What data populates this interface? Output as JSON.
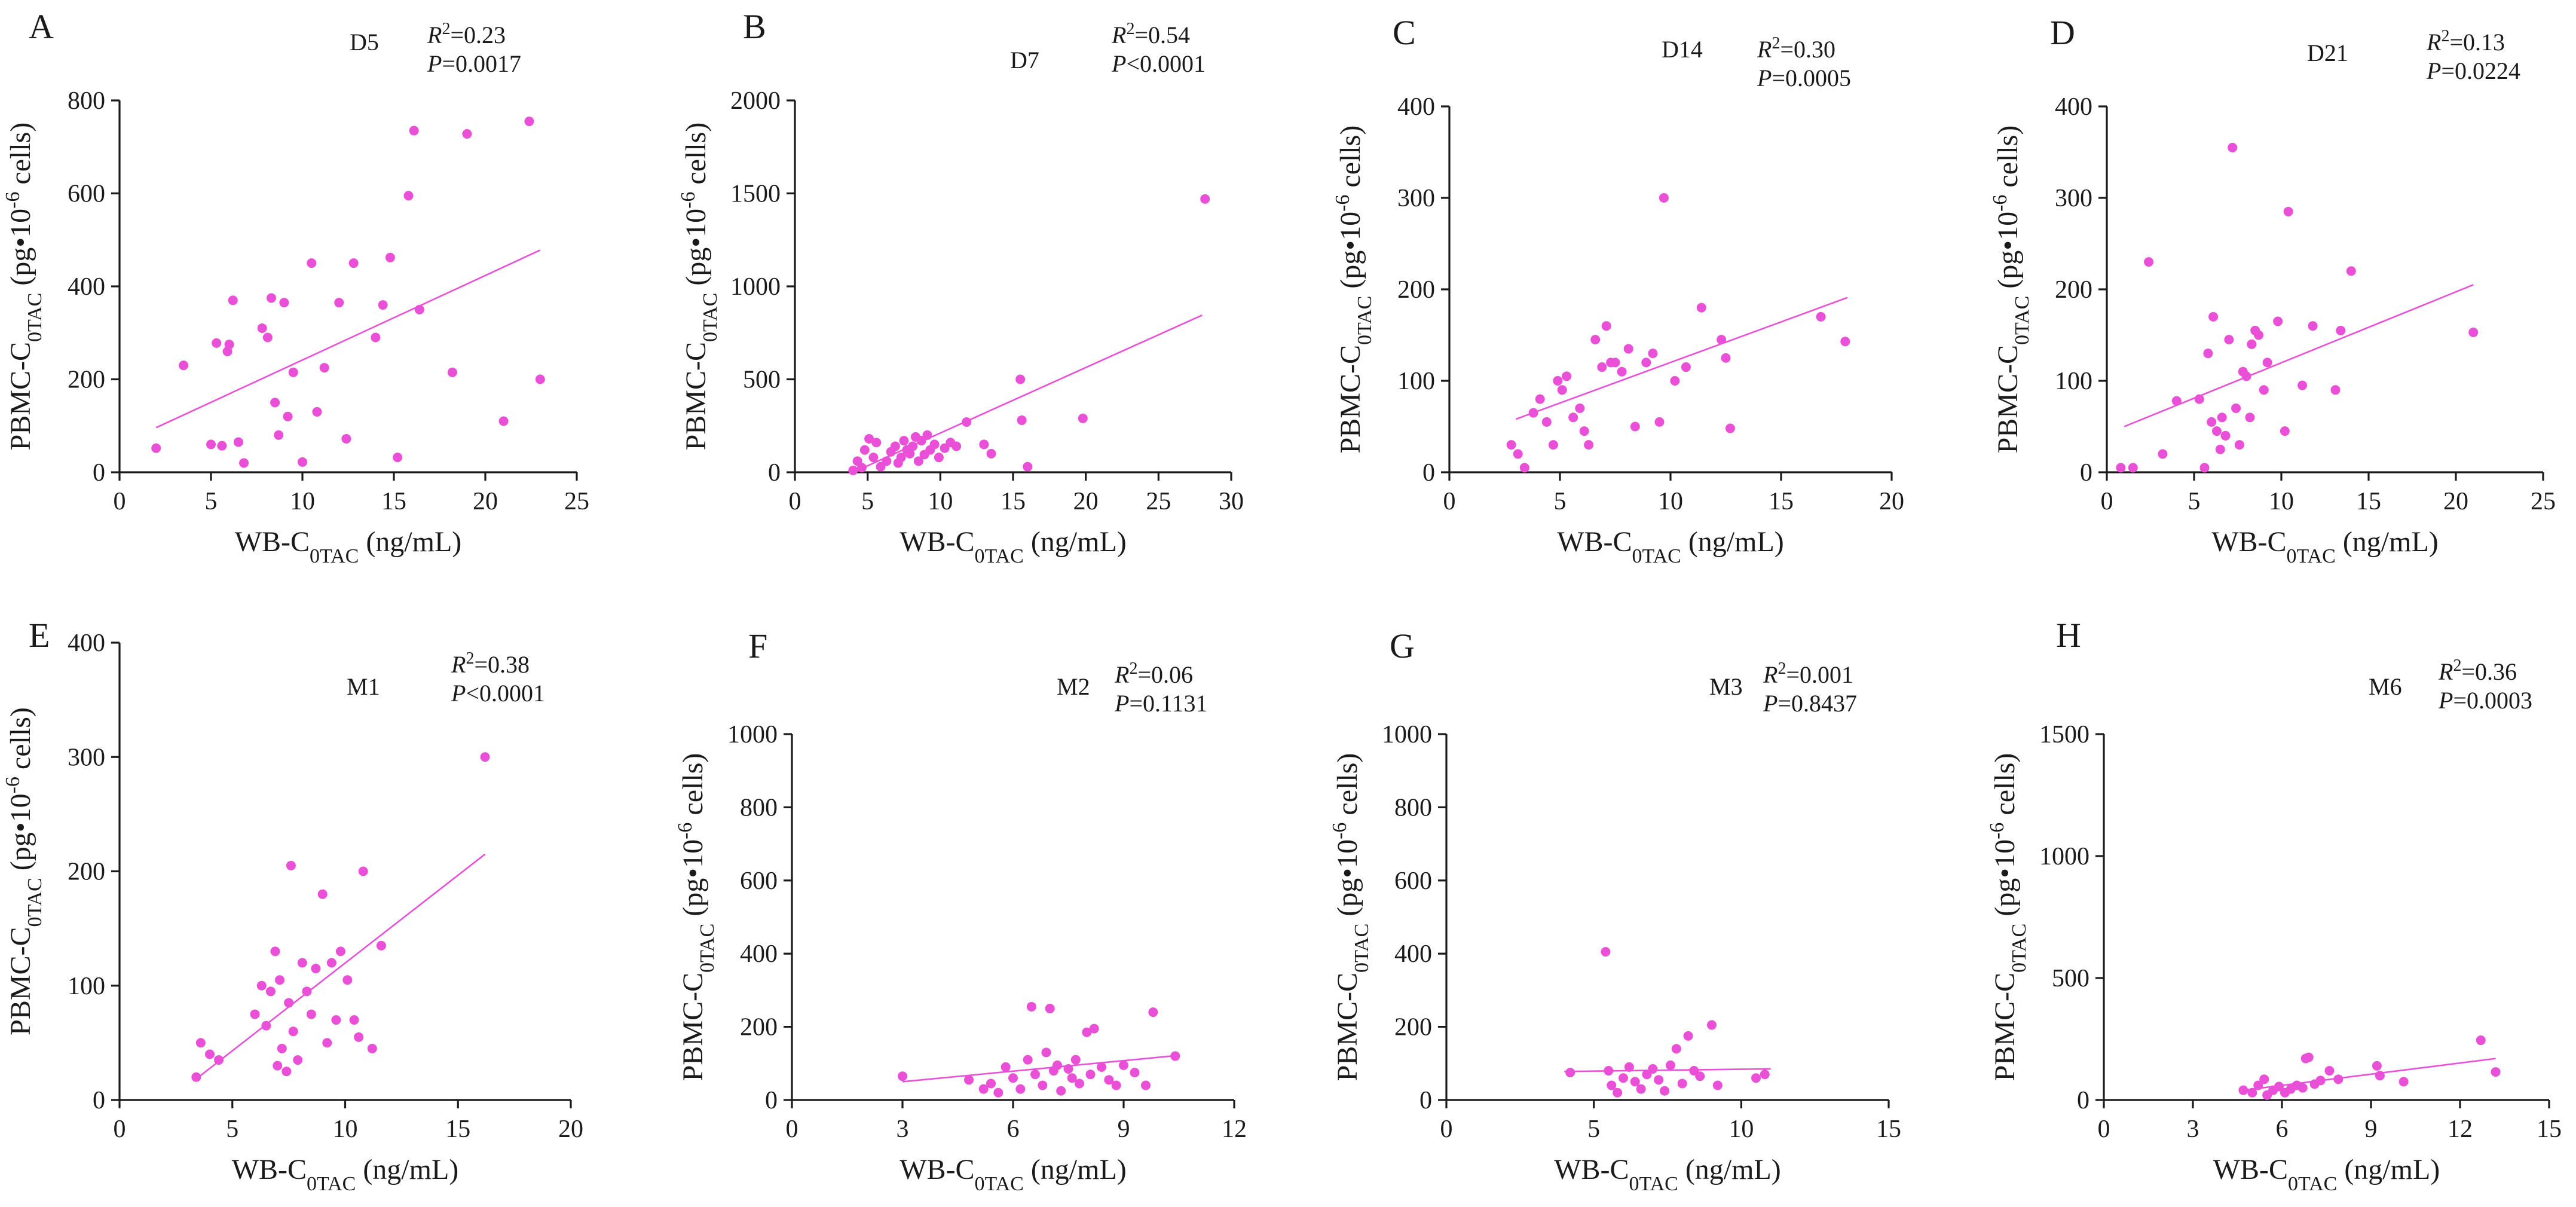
{
  "figure": {
    "point_color": "#e94fd7",
    "line_color": "#e94fd7",
    "x_label": {
      "pre": "WB-C",
      "sub": "0TAC",
      "post": " (ng/mL)"
    },
    "y_label": {
      "pre": "PBMC-C",
      "sub": "0TAC",
      "mid": " (pg•10",
      "sup": "-6",
      "post": " cells)"
    }
  },
  "chart_data": [
    {
      "panel": "A",
      "type": "scatter",
      "group": "D5",
      "r2": "0.23",
      "p_prefix": "=",
      "p": "0.0017",
      "xlim": [
        0,
        25
      ],
      "ylim": [
        0,
        800
      ],
      "xticks": [
        0,
        5,
        10,
        15,
        20,
        25
      ],
      "yticks": [
        0,
        200,
        400,
        600,
        800
      ],
      "fit": [
        [
          2,
          96
        ],
        [
          23,
          478
        ]
      ],
      "points": [
        [
          2,
          52
        ],
        [
          3.5,
          230
        ],
        [
          5,
          60
        ],
        [
          5.3,
          278
        ],
        [
          5.6,
          57
        ],
        [
          5.9,
          260
        ],
        [
          6,
          275
        ],
        [
          6.2,
          370
        ],
        [
          6.5,
          65
        ],
        [
          6.8,
          20
        ],
        [
          7.8,
          310
        ],
        [
          8.1,
          290
        ],
        [
          8.3,
          375
        ],
        [
          8.5,
          150
        ],
        [
          8.7,
          80
        ],
        [
          9,
          365
        ],
        [
          9.2,
          120
        ],
        [
          9.5,
          215
        ],
        [
          10,
          22
        ],
        [
          10.5,
          450
        ],
        [
          10.8,
          130
        ],
        [
          11.2,
          225
        ],
        [
          12,
          365
        ],
        [
          12.4,
          72
        ],
        [
          12.8,
          450
        ],
        [
          14,
          290
        ],
        [
          14.4,
          360
        ],
        [
          14.8,
          462
        ],
        [
          15.2,
          32
        ],
        [
          15.8,
          595
        ],
        [
          16.1,
          735
        ],
        [
          16.4,
          350
        ],
        [
          18.2,
          215
        ],
        [
          19,
          728
        ],
        [
          21,
          110
        ],
        [
          22.4,
          755
        ],
        [
          23,
          200
        ]
      ]
    },
    {
      "panel": "B",
      "type": "scatter",
      "group": "D7",
      "r2": "0.54",
      "p_prefix": "<",
      "p": "0.0001",
      "xlim": [
        0,
        30
      ],
      "ylim": [
        0,
        2000
      ],
      "xticks": [
        0,
        5,
        10,
        15,
        20,
        25,
        30
      ],
      "yticks": [
        0,
        500,
        1000,
        1500,
        2000
      ],
      "fit": [
        [
          4,
          0
        ],
        [
          28,
          845
        ]
      ],
      "points": [
        [
          4,
          10
        ],
        [
          4.3,
          60
        ],
        [
          4.6,
          25
        ],
        [
          4.8,
          120
        ],
        [
          5.1,
          180
        ],
        [
          5.4,
          80
        ],
        [
          5.6,
          160
        ],
        [
          5.9,
          30
        ],
        [
          6.3,
          60
        ],
        [
          6.6,
          110
        ],
        [
          6.9,
          140
        ],
        [
          7.1,
          50
        ],
        [
          7.3,
          80
        ],
        [
          7.5,
          170
        ],
        [
          7.7,
          120
        ],
        [
          7.9,
          100
        ],
        [
          8.1,
          140
        ],
        [
          8.3,
          190
        ],
        [
          8.5,
          60
        ],
        [
          8.7,
          170
        ],
        [
          8.9,
          95
        ],
        [
          9.1,
          200
        ],
        [
          9.3,
          120
        ],
        [
          9.6,
          150
        ],
        [
          9.9,
          80
        ],
        [
          10.3,
          130
        ],
        [
          10.7,
          160
        ],
        [
          11.1,
          140
        ],
        [
          11.8,
          270
        ],
        [
          13,
          150
        ],
        [
          13.5,
          100
        ],
        [
          15.5,
          500
        ],
        [
          15.6,
          280
        ],
        [
          16,
          30
        ],
        [
          19.8,
          290
        ],
        [
          28.2,
          1470
        ]
      ]
    },
    {
      "panel": "C",
      "type": "scatter",
      "group": "D14",
      "r2": "0.30",
      "p_prefix": "=",
      "p": "0.0005",
      "xlim": [
        0,
        20
      ],
      "ylim": [
        0,
        400
      ],
      "xticks": [
        0,
        5,
        10,
        15,
        20
      ],
      "yticks": [
        0,
        100,
        200,
        300,
        400
      ],
      "fit": [
        [
          3,
          58
        ],
        [
          18,
          191
        ]
      ],
      "points": [
        [
          2.8,
          30
        ],
        [
          3.1,
          20
        ],
        [
          3.4,
          5
        ],
        [
          3.8,
          65
        ],
        [
          4.1,
          80
        ],
        [
          4.4,
          55
        ],
        [
          4.7,
          30
        ],
        [
          4.9,
          100
        ],
        [
          5.1,
          90
        ],
        [
          5.3,
          105
        ],
        [
          5.6,
          60
        ],
        [
          5.9,
          70
        ],
        [
          6.1,
          45
        ],
        [
          6.3,
          30
        ],
        [
          6.6,
          145
        ],
        [
          6.9,
          115
        ],
        [
          7.1,
          160
        ],
        [
          7.3,
          120
        ],
        [
          7.5,
          120
        ],
        [
          7.8,
          110
        ],
        [
          8.1,
          135
        ],
        [
          8.4,
          50
        ],
        [
          8.9,
          120
        ],
        [
          9.2,
          130
        ],
        [
          9.5,
          55
        ],
        [
          9.7,
          300
        ],
        [
          10.2,
          100
        ],
        [
          10.7,
          115
        ],
        [
          11.4,
          180
        ],
        [
          12.3,
          145
        ],
        [
          12.5,
          125
        ],
        [
          12.7,
          48
        ],
        [
          16.8,
          170
        ],
        [
          17.9,
          143
        ]
      ]
    },
    {
      "panel": "D",
      "type": "scatter",
      "group": "D21",
      "r2": "0.13",
      "p_prefix": "=",
      "p": "0.0224",
      "xlim": [
        0,
        25
      ],
      "ylim": [
        0,
        400
      ],
      "xticks": [
        0,
        5,
        10,
        15,
        20,
        25
      ],
      "yticks": [
        0,
        100,
        200,
        300,
        400
      ],
      "fit": [
        [
          1,
          50
        ],
        [
          21,
          205
        ]
      ],
      "points": [
        [
          0.8,
          5
        ],
        [
          1.5,
          5
        ],
        [
          2.4,
          230
        ],
        [
          3.2,
          20
        ],
        [
          4,
          78
        ],
        [
          5.3,
          80
        ],
        [
          5.6,
          5
        ],
        [
          5.8,
          130
        ],
        [
          6,
          55
        ],
        [
          6.1,
          170
        ],
        [
          6.3,
          45
        ],
        [
          6.5,
          25
        ],
        [
          6.6,
          60
        ],
        [
          6.8,
          40
        ],
        [
          7,
          145
        ],
        [
          7.2,
          355
        ],
        [
          7.4,
          70
        ],
        [
          7.6,
          30
        ],
        [
          7.8,
          110
        ],
        [
          8,
          105
        ],
        [
          8.2,
          60
        ],
        [
          8.3,
          140
        ],
        [
          8.5,
          155
        ],
        [
          8.7,
          150
        ],
        [
          9,
          90
        ],
        [
          9.2,
          120
        ],
        [
          9.8,
          165
        ],
        [
          10.2,
          45
        ],
        [
          10.4,
          285
        ],
        [
          11.2,
          95
        ],
        [
          11.8,
          160
        ],
        [
          13.1,
          90
        ],
        [
          13.4,
          155
        ],
        [
          14,
          220
        ],
        [
          21,
          153
        ]
      ]
    },
    {
      "panel": "E",
      "type": "scatter",
      "group": "M1",
      "r2": "0.38",
      "p_prefix": "<",
      "p": "0.0001",
      "xlim": [
        0,
        20
      ],
      "ylim": [
        0,
        400
      ],
      "xticks": [
        0,
        5,
        10,
        15,
        20
      ],
      "yticks": [
        0,
        100,
        200,
        300,
        400
      ],
      "fit": [
        [
          3.5,
          20
        ],
        [
          16.2,
          215
        ]
      ],
      "points": [
        [
          3.4,
          20
        ],
        [
          3.6,
          50
        ],
        [
          4,
          40
        ],
        [
          4.4,
          35
        ],
        [
          6,
          75
        ],
        [
          6.3,
          100
        ],
        [
          6.5,
          65
        ],
        [
          6.7,
          95
        ],
        [
          6.9,
          130
        ],
        [
          7,
          30
        ],
        [
          7.1,
          105
        ],
        [
          7.2,
          45
        ],
        [
          7.4,
          25
        ],
        [
          7.5,
          85
        ],
        [
          7.6,
          205
        ],
        [
          7.7,
          60
        ],
        [
          7.9,
          35
        ],
        [
          8.1,
          120
        ],
        [
          8.3,
          95
        ],
        [
          8.5,
          75
        ],
        [
          8.7,
          115
        ],
        [
          9,
          180
        ],
        [
          9.2,
          50
        ],
        [
          9.4,
          120
        ],
        [
          9.6,
          70
        ],
        [
          9.8,
          130
        ],
        [
          10.1,
          105
        ],
        [
          10.4,
          70
        ],
        [
          10.6,
          55
        ],
        [
          10.8,
          200
        ],
        [
          11.2,
          45
        ],
        [
          11.6,
          135
        ],
        [
          16.2,
          300
        ]
      ]
    },
    {
      "panel": "F",
      "type": "scatter",
      "group": "M2",
      "r2": "0.06",
      "p_prefix": "=",
      "p": "0.1131",
      "xlim": [
        0,
        12
      ],
      "ylim": [
        0,
        1000
      ],
      "xticks": [
        0,
        3,
        6,
        9,
        12
      ],
      "yticks": [
        0,
        200,
        400,
        600,
        800,
        1000
      ],
      "fit": [
        [
          3,
          50
        ],
        [
          10.5,
          122
        ]
      ],
      "points": [
        [
          3,
          65
        ],
        [
          4.8,
          55
        ],
        [
          5.2,
          30
        ],
        [
          5.4,
          45
        ],
        [
          5.6,
          20
        ],
        [
          5.8,
          90
        ],
        [
          6,
          60
        ],
        [
          6.2,
          30
        ],
        [
          6.4,
          110
        ],
        [
          6.5,
          255
        ],
        [
          6.6,
          70
        ],
        [
          6.8,
          40
        ],
        [
          6.9,
          130
        ],
        [
          7,
          250
        ],
        [
          7.1,
          80
        ],
        [
          7.2,
          95
        ],
        [
          7.3,
          25
        ],
        [
          7.5,
          85
        ],
        [
          7.6,
          60
        ],
        [
          7.7,
          110
        ],
        [
          7.8,
          45
        ],
        [
          8,
          185
        ],
        [
          8.1,
          70
        ],
        [
          8.2,
          195
        ],
        [
          8.4,
          90
        ],
        [
          8.6,
          55
        ],
        [
          8.8,
          40
        ],
        [
          9,
          95
        ],
        [
          9.3,
          75
        ],
        [
          9.6,
          40
        ],
        [
          9.8,
          240
        ],
        [
          10.4,
          120
        ]
      ]
    },
    {
      "panel": "G",
      "type": "scatter",
      "group": "M3",
      "r2": "0.001",
      "p_prefix": "=",
      "p": "0.8437",
      "xlim": [
        0,
        15
      ],
      "ylim": [
        0,
        1000
      ],
      "xticks": [
        0,
        5,
        10,
        15
      ],
      "yticks": [
        0,
        200,
        400,
        600,
        800,
        1000
      ],
      "fit": [
        [
          4,
          78
        ],
        [
          11,
          85
        ]
      ],
      "points": [
        [
          4.2,
          75
        ],
        [
          5.4,
          405
        ],
        [
          5.5,
          80
        ],
        [
          5.6,
          40
        ],
        [
          5.8,
          20
        ],
        [
          6,
          60
        ],
        [
          6.2,
          90
        ],
        [
          6.4,
          50
        ],
        [
          6.6,
          30
        ],
        [
          6.8,
          70
        ],
        [
          7,
          85
        ],
        [
          7.2,
          55
        ],
        [
          7.4,
          25
        ],
        [
          7.6,
          95
        ],
        [
          7.8,
          140
        ],
        [
          8,
          45
        ],
        [
          8.2,
          175
        ],
        [
          8.4,
          80
        ],
        [
          8.6,
          65
        ],
        [
          9,
          205
        ],
        [
          9.2,
          40
        ],
        [
          10.5,
          60
        ],
        [
          10.8,
          70
        ]
      ]
    },
    {
      "panel": "H",
      "type": "scatter",
      "group": "M6",
      "r2": "0.36",
      "p_prefix": "=",
      "p": "0.0003",
      "xlim": [
        0,
        15
      ],
      "ylim": [
        0,
        1500
      ],
      "xticks": [
        0,
        3,
        6,
        9,
        12,
        15
      ],
      "yticks": [
        0,
        500,
        1000,
        1500
      ],
      "fit": [
        [
          4.7,
          40
        ],
        [
          13.2,
          170
        ]
      ],
      "points": [
        [
          4.7,
          40
        ],
        [
          5,
          30
        ],
        [
          5.2,
          60
        ],
        [
          5.4,
          85
        ],
        [
          5.5,
          20
        ],
        [
          5.7,
          40
        ],
        [
          5.9,
          55
        ],
        [
          6.1,
          30
        ],
        [
          6.3,
          45
        ],
        [
          6.5,
          60
        ],
        [
          6.7,
          50
        ],
        [
          6.8,
          170
        ],
        [
          6.9,
          175
        ],
        [
          7.1,
          65
        ],
        [
          7.3,
          80
        ],
        [
          7.6,
          120
        ],
        [
          7.9,
          85
        ],
        [
          9.2,
          140
        ],
        [
          9.3,
          100
        ],
        [
          10.1,
          75
        ],
        [
          12.7,
          245
        ],
        [
          13.2,
          115
        ]
      ]
    }
  ]
}
